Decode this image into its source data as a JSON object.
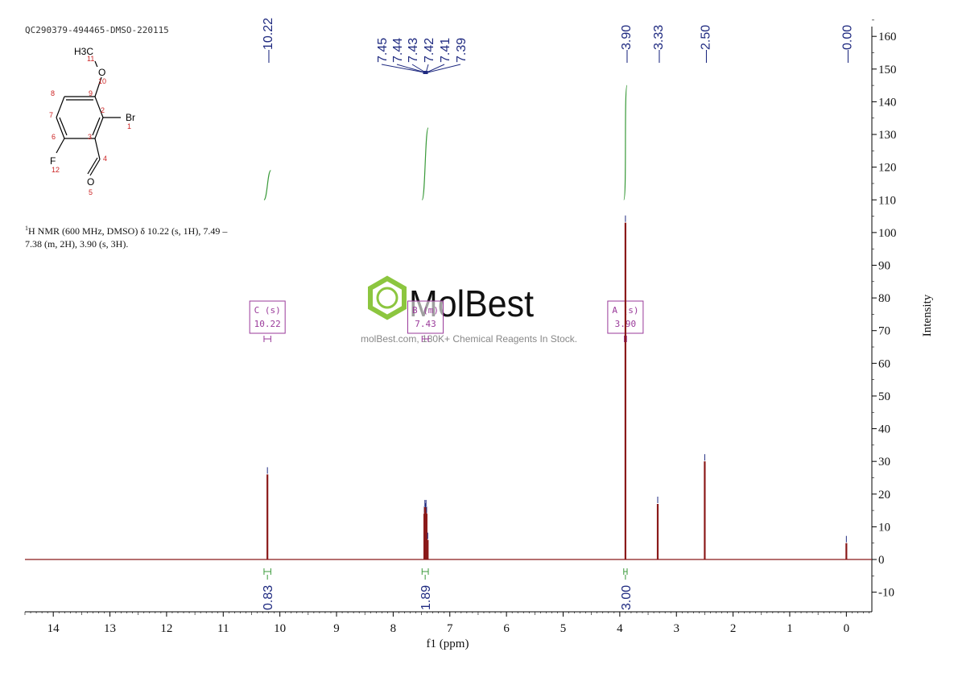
{
  "sample_id": "QC290379-494465-DMSO-220115",
  "nmr_summary_line1": "H NMR (600 MHz, DMSO) δ 10.22 (s, 1H), 7.49 –",
  "nmr_summary_sup": "1",
  "nmr_summary_line2": "7.38 (m, 2H), 3.90 (s, 3H).",
  "watermark": {
    "brand": "MolBest",
    "tagline": "molBest.com, 180K+ Chemical Reagents In Stock.",
    "color": "#8cc63f"
  },
  "molecule": {
    "atoms": [
      {
        "symbol": "Br",
        "num": "1"
      },
      {
        "symbol": "",
        "num": "2"
      },
      {
        "symbol": "",
        "num": "3"
      },
      {
        "symbol": "",
        "num": "4"
      },
      {
        "symbol": "O",
        "num": "5"
      },
      {
        "symbol": "",
        "num": "6"
      },
      {
        "symbol": "",
        "num": "7"
      },
      {
        "symbol": "",
        "num": "8"
      },
      {
        "symbol": "",
        "num": "9"
      },
      {
        "symbol": "O",
        "num": "10"
      },
      {
        "symbol": "H3C",
        "num": "11"
      },
      {
        "symbol": "F",
        "num": "12"
      }
    ]
  },
  "chart_data": {
    "type": "line",
    "xlabel": "f1 (ppm)",
    "ylabel": "Intensity",
    "xlim": [
      14.5,
      -0.45
    ],
    "ylim": [
      -16,
      163
    ],
    "x_ticks": [
      14,
      13,
      12,
      11,
      10,
      9,
      8,
      7,
      6,
      5,
      4,
      3,
      2,
      1,
      0
    ],
    "y_ticks": [
      -10,
      0,
      10,
      20,
      30,
      40,
      50,
      60,
      70,
      80,
      90,
      100,
      110,
      120,
      130,
      140,
      150,
      160
    ],
    "colors": {
      "spectrum": "#8b1a1a",
      "peak_label": "#1f2a80",
      "integral": "#3a9a3a",
      "multiplet": "#9a3a9a"
    },
    "peaks": [
      {
        "ppm": 10.22,
        "height": 26
      },
      {
        "ppm": 7.45,
        "height": 14
      },
      {
        "ppm": 7.44,
        "height": 16
      },
      {
        "ppm": 7.43,
        "height": 15
      },
      {
        "ppm": 7.42,
        "height": 16
      },
      {
        "ppm": 7.41,
        "height": 14
      },
      {
        "ppm": 7.39,
        "height": 6
      },
      {
        "ppm": 3.9,
        "height": 103
      },
      {
        "ppm": 3.33,
        "height": 17
      },
      {
        "ppm": 2.5,
        "height": 30
      },
      {
        "ppm": 0.0,
        "height": 5
      }
    ],
    "peak_labels": [
      "10.22",
      "7.45",
      "7.44",
      "7.43",
      "7.42",
      "7.41",
      "7.39",
      "3.90",
      "3.33",
      "2.50",
      "0.00"
    ],
    "integrals": [
      {
        "from": 10.28,
        "to": 10.16,
        "value": "0.83",
        "bottom": 110,
        "top": 119
      },
      {
        "from": 7.49,
        "to": 7.38,
        "value": "1.89",
        "bottom": 110,
        "top": 132
      },
      {
        "from": 3.93,
        "to": 3.87,
        "value": "3.00",
        "bottom": 110,
        "top": 145
      }
    ],
    "multiplets": [
      {
        "id": "C",
        "type": "(s)",
        "shift": "10.22",
        "center": 10.22,
        "from": 10.28,
        "to": 10.16
      },
      {
        "id": "B",
        "type": "(m)",
        "shift": "7.43",
        "center": 7.43,
        "from": 7.49,
        "to": 7.38
      },
      {
        "id": "A",
        "type": "(s)",
        "shift": "3.90",
        "center": 3.9,
        "from": 3.92,
        "to": 3.88
      }
    ]
  }
}
